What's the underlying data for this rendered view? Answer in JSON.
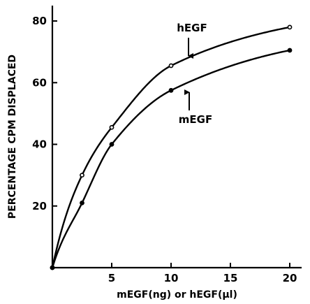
{
  "chart_data": {
    "type": "line",
    "title": "",
    "xlabel": "mEGF(ng) or hEGF(µl)",
    "ylabel": "PERCENTAGE CPM DISPLACED",
    "xlim": [
      0,
      21
    ],
    "ylim": [
      0,
      85
    ],
    "x_ticks": [
      5,
      10,
      15,
      20
    ],
    "x_tick_labels": [
      "5",
      "10",
      "15",
      "20"
    ],
    "y_ticks": [
      20,
      40,
      60,
      80
    ],
    "y_tick_labels": [
      "20",
      "40",
      "60",
      "80"
    ],
    "grid": false,
    "legend": "none",
    "series": [
      {
        "name": "hEGF",
        "marker": "open-circle",
        "x": [
          0,
          2.5,
          5,
          10,
          20
        ],
        "y": [
          0,
          30,
          45.5,
          65.5,
          78
        ]
      },
      {
        "name": "mEGF",
        "marker": "filled-circle",
        "x": [
          0,
          2.5,
          5,
          10,
          20
        ],
        "y": [
          0,
          21,
          40,
          57.5,
          70.5
        ]
      }
    ],
    "annotations": [
      {
        "text": "hEGF",
        "points_to_series": "hEGF",
        "arrow": "down"
      },
      {
        "text": "mEGF",
        "points_to_series": "mEGF",
        "arrow": "up"
      }
    ]
  }
}
